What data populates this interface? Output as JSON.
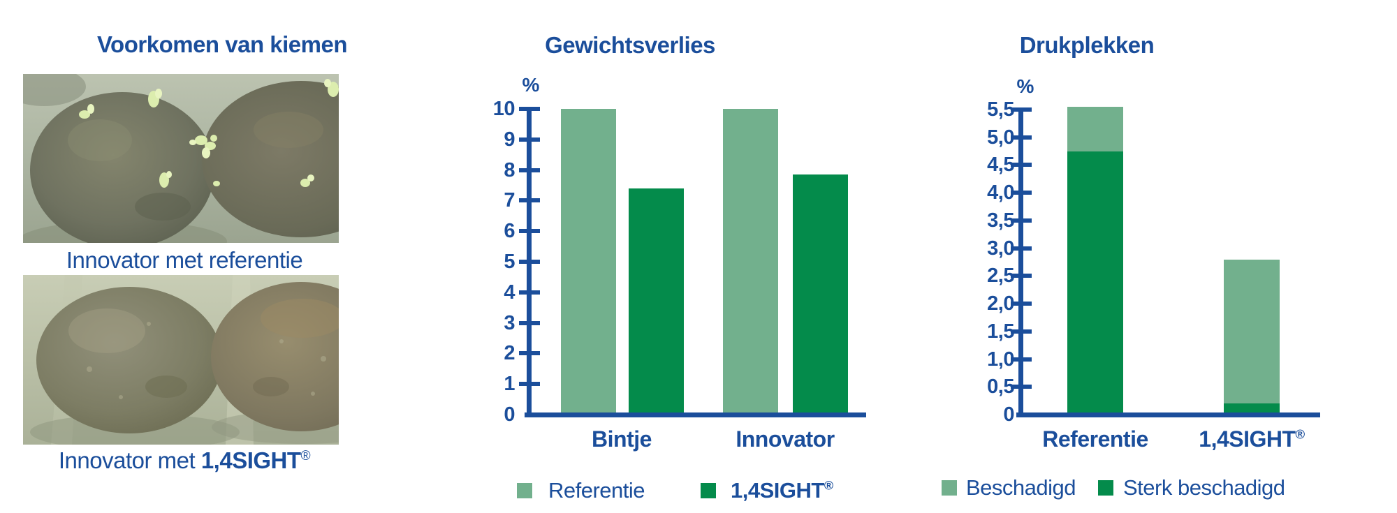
{
  "accent": {
    "blue": "#1b4e9b",
    "light_green": "#72b08d",
    "dark_green": "#048b4b"
  },
  "photos_panel": {
    "title": "Voorkomen van kiemen",
    "photo1_caption": "Innovator met referentie",
    "photo2_caption_prefix": "Innovator met ",
    "photo2_caption_brand": "1,4SIGHT",
    "photo2_caption_reg": "®"
  },
  "chart_data": [
    {
      "type": "bar",
      "stacked": false,
      "title": "Gewichtsverlies",
      "xlabel": "",
      "ylabel": "%",
      "categories": [
        "Bintje",
        "Innovator"
      ],
      "series": [
        {
          "name": "Referentie",
          "color": "#72b08d",
          "values": [
            10,
            10
          ]
        },
        {
          "name": "1,4SIGHT®",
          "color": "#048b4b",
          "values": [
            7.4,
            7.85
          ]
        }
      ],
      "ylim": [
        0,
        10
      ],
      "ytick_labels": [
        "0",
        "1",
        "2",
        "3",
        "4",
        "5",
        "6",
        "7",
        "8",
        "9",
        "10"
      ],
      "grid": false,
      "legend_position": "bottom",
      "legend": [
        {
          "label": "Referentie",
          "suffix": "",
          "color": "light_green",
          "bold": false
        },
        {
          "label": "1,4SIGHT",
          "suffix": "®",
          "color": "dark_green",
          "bold": true
        }
      ]
    },
    {
      "type": "bar",
      "stacked": true,
      "title": "Drukplekken",
      "xlabel": "",
      "ylabel": "%",
      "categories": [
        "Referentie",
        "1,4SIGHT®"
      ],
      "series": [
        {
          "name": "Sterk beschadigd",
          "color": "#048b4b",
          "values": [
            4.75,
            0.2
          ]
        },
        {
          "name": "Beschadigd",
          "color": "#72b08d",
          "values": [
            0.8,
            2.6
          ]
        }
      ],
      "ylim": [
        0,
        5.5
      ],
      "ytick_labels": [
        "0",
        "0,5",
        "1,0",
        "1,5",
        "2,0",
        "2,5",
        "3,0",
        "3,5",
        "4,0",
        "4,5",
        "5,0",
        "5,5"
      ],
      "grid": false,
      "legend_position": "bottom",
      "legend": [
        {
          "label": "Beschadigd",
          "suffix": "",
          "color": "light_green",
          "bold": false
        },
        {
          "label": "Sterk beschadigd",
          "suffix": "",
          "color": "dark_green",
          "bold": false
        }
      ]
    }
  ]
}
